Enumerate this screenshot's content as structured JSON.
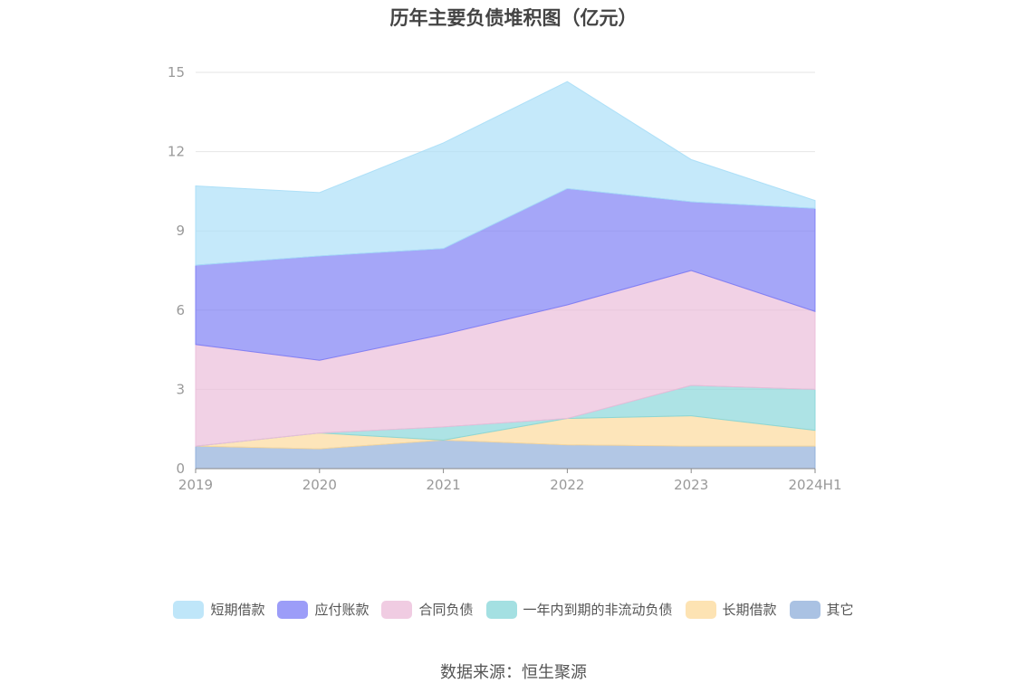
{
  "chart_data": {
    "type": "area",
    "title": "历年主要负债堆积图（亿元）",
    "categories": [
      "2019",
      "2020",
      "2021",
      "2022",
      "2023",
      "2024H1"
    ],
    "y_ticks": [
      "0",
      "3",
      "6",
      "9",
      "12",
      "15"
    ],
    "ylim": [
      0,
      15
    ],
    "stacked": true,
    "grid": true,
    "legend_position": "bottom",
    "series": [
      {
        "name": "其它",
        "color": "#8eadd9",
        "values": [
          0.85,
          0.75,
          1.08,
          0.9,
          0.85,
          0.85
        ]
      },
      {
        "name": "长期借款",
        "color": "#fcd99a",
        "values": [
          0.0,
          0.6,
          0.0,
          1.0,
          1.15,
          0.6
        ]
      },
      {
        "name": "一年内到期的非流动负债",
        "color": "#86d6d8",
        "values": [
          0.0,
          0.0,
          0.5,
          0.0,
          1.15,
          1.55
        ]
      },
      {
        "name": "合同负债",
        "color": "#ebbbd8",
        "values": [
          3.85,
          2.75,
          3.5,
          4.3,
          4.35,
          2.95
        ]
      },
      {
        "name": "应付账款",
        "color": "#7b7cf5",
        "values": [
          3.0,
          3.95,
          3.25,
          4.4,
          2.6,
          3.9
        ]
      },
      {
        "name": "短期借款",
        "color": "#a9def7",
        "values": [
          3.0,
          2.4,
          4.0,
          4.05,
          1.6,
          0.3
        ]
      }
    ],
    "legend_order": [
      "短期借款",
      "应付账款",
      "合同负债",
      "一年内到期的非流动负债",
      "长期借款",
      "其它"
    ]
  },
  "source": "数据来源：恒生聚源"
}
